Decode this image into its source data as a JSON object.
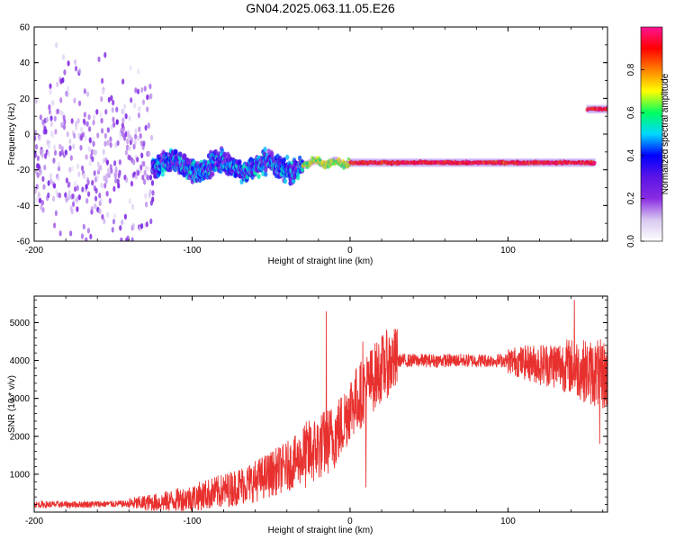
{
  "title": "GN04.2025.063.11.05.E26",
  "colors": {
    "snr_line": "#e8312f",
    "axis": "#000000",
    "background": "#ffffff",
    "colormap": [
      "#ffffff",
      "#d8c8f0",
      "#8a2be2",
      "#5a14e6",
      "#0000ff",
      "#00d8ff",
      "#00ff60",
      "#ffff00",
      "#ff8000",
      "#ff0000",
      "#ff1493"
    ]
  },
  "chart_data": [
    {
      "type": "heatmap",
      "xlabel": "Height of straight line (km)",
      "ylabel": "Frequency (Hz)",
      "xlim": [
        -200,
        163
      ],
      "ylim": [
        -60,
        60
      ],
      "x_ticks": [
        "-200",
        "-100",
        "0",
        "100"
      ],
      "y_ticks": [
        "60",
        "40",
        "20",
        "0",
        "-20",
        "-40",
        "-60"
      ],
      "grid": false,
      "colorbar": {
        "label": "Normalized spectral amplitude",
        "range": [
          0,
          1
        ],
        "ticks": [
          "0.0",
          "0.2",
          "0.4",
          "0.6",
          "0.8"
        ]
      },
      "segments": [
        {
          "x_range": [
            -200,
            -125
          ],
          "freq_center": -15,
          "freq_spread": 60,
          "amplitude": 0.15,
          "pattern": "scattered noise"
        },
        {
          "x_range": [
            -125,
            -30
          ],
          "freq_center": -18,
          "freq_spread": 8,
          "amplitude": 0.35,
          "pattern": "wandering tone"
        },
        {
          "x_range": [
            -30,
            0
          ],
          "freq_center": -16,
          "freq_spread": 3,
          "amplitude": 0.7,
          "pattern": "stabilizing tone"
        },
        {
          "x_range": [
            0,
            155
          ],
          "freq_center": -16,
          "freq_spread": 1,
          "amplitude": 0.95,
          "pattern": "steady tone"
        },
        {
          "x_range": [
            150,
            163
          ],
          "freq_center": 14,
          "freq_spread": 1,
          "amplitude": 0.95,
          "pattern": "shifted tone"
        }
      ]
    },
    {
      "type": "line",
      "xlabel": "Height of straight line (km)",
      "ylabel": "SNR (10 * v/v)",
      "xlim": [
        -200,
        163
      ],
      "ylim": [
        0,
        5700
      ],
      "x_ticks": [
        "-200",
        "-100",
        "0",
        "100"
      ],
      "y_ticks": [
        "1000",
        "2000",
        "3000",
        "4000",
        "5000"
      ],
      "grid": false,
      "series": [
        {
          "x": [
            -200,
            -180,
            -160,
            -140,
            -120,
            -100,
            -80,
            -60,
            -40,
            -30,
            -20,
            -15,
            -10,
            -5,
            0,
            5,
            10,
            15,
            20,
            25,
            30,
            40,
            60,
            80,
            100,
            110,
            120,
            130,
            140,
            150,
            163
          ],
          "values": [
            200,
            200,
            210,
            220,
            260,
            380,
            560,
            820,
            1200,
            1450,
            1700,
            1850,
            2000,
            2300,
            2800,
            3000,
            3300,
            3550,
            3800,
            3950,
            4000,
            4000,
            4000,
            4000,
            4000,
            3950,
            3900,
            3900,
            3850,
            3700,
            3600
          ]
        }
      ],
      "spikes": [
        {
          "x": -15,
          "value": 5300
        },
        {
          "x": 8,
          "value": 4500
        },
        {
          "x": 10,
          "value": 650
        },
        {
          "x": 142,
          "value": 5600
        },
        {
          "x": 158,
          "value": 5250
        },
        {
          "x": 158,
          "value": 1800
        }
      ]
    }
  ]
}
